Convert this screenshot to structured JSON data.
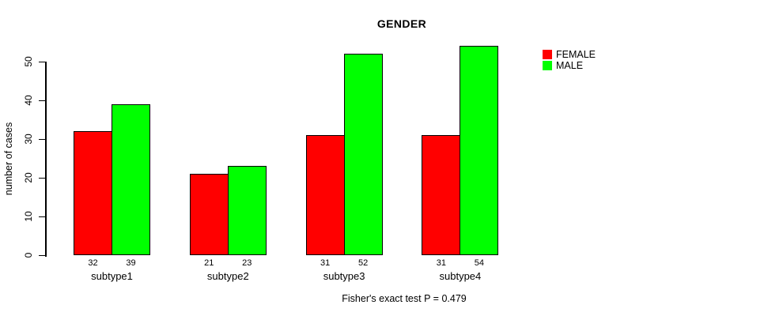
{
  "title": "GENDER",
  "y_axis": {
    "label": "number of cases",
    "ticks": [
      0,
      10,
      20,
      30,
      40,
      50
    ]
  },
  "footer": "Fisher's exact test P = 0.479",
  "legend": {
    "items": [
      {
        "label": "FEMALE",
        "color": "#ff0000"
      },
      {
        "label": "MALE",
        "color": "#00ff00"
      }
    ]
  },
  "chart_data": {
    "type": "bar",
    "title": "GENDER",
    "categories": [
      "subtype1",
      "subtype2",
      "subtype3",
      "subtype4"
    ],
    "series": [
      {
        "name": "FEMALE",
        "color": "#ff0000",
        "values": [
          32,
          21,
          31,
          31
        ]
      },
      {
        "name": "MALE",
        "color": "#00ff00",
        "values": [
          39,
          23,
          52,
          54
        ]
      }
    ],
    "xlabel": "",
    "ylabel": "number of cases",
    "ylim": [
      0,
      50
    ],
    "yticks": [
      0,
      10,
      20,
      30,
      40,
      50
    ],
    "value_labels_shown": true,
    "grid": false,
    "legend_position": "top-right",
    "annotation": "Fisher's exact test P = 0.479"
  }
}
